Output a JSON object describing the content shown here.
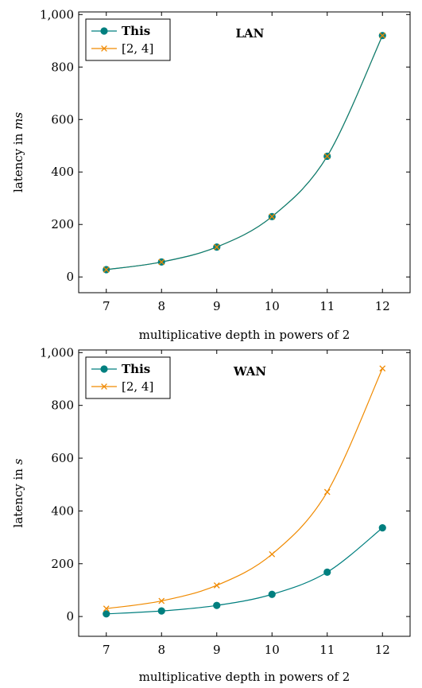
{
  "chart_data": [
    {
      "type": "line",
      "title": "LAN",
      "xlabel": "multiplicative depth in powers of 2",
      "ylabel_parts": [
        "latency in ",
        "ms"
      ],
      "x": [
        7,
        8,
        9,
        10,
        11,
        12
      ],
      "xlim": [
        6.5,
        12.5
      ],
      "ylim": [
        -60,
        1010
      ],
      "yticks": [
        0,
        200,
        400,
        600,
        800,
        1000
      ],
      "ytick_labels": [
        "0",
        "200",
        "400",
        "600",
        "800",
        "1,000"
      ],
      "xticks": [
        7,
        8,
        9,
        10,
        11,
        12
      ],
      "xtick_labels": [
        "7",
        "8",
        "9",
        "10",
        "11",
        "12"
      ],
      "legend_position": "top-left",
      "series": [
        {
          "name": "This",
          "values": [
            28,
            57,
            114,
            230,
            460,
            920
          ],
          "color": "#007f7f",
          "marker": "circle",
          "bold": true
        },
        {
          "name": "[2, 4]",
          "values": [
            28,
            57,
            114,
            230,
            460,
            920
          ],
          "color": "#f08a00",
          "marker": "x",
          "bold": false
        }
      ]
    },
    {
      "type": "line",
      "title": "WAN",
      "xlabel": "multiplicative depth in powers of 2",
      "ylabel_parts": [
        "latency in ",
        "s"
      ],
      "x": [
        7,
        8,
        9,
        10,
        11,
        12
      ],
      "xlim": [
        6.5,
        12.5
      ],
      "ylim": [
        -75,
        1010
      ],
      "yticks": [
        0,
        200,
        400,
        600,
        800,
        1000
      ],
      "ytick_labels": [
        "0",
        "200",
        "400",
        "600",
        "800",
        "1,000"
      ],
      "xticks": [
        7,
        8,
        9,
        10,
        11,
        12
      ],
      "xtick_labels": [
        "7",
        "8",
        "9",
        "10",
        "11",
        "12"
      ],
      "legend_position": "top-left",
      "series": [
        {
          "name": "This",
          "values": [
            10,
            21,
            42,
            84,
            168,
            336
          ],
          "color": "#007f7f",
          "marker": "circle",
          "bold": true
        },
        {
          "name": "[2, 4]",
          "values": [
            30,
            59,
            118,
            236,
            472,
            940
          ],
          "color": "#f08a00",
          "marker": "x",
          "bold": false
        }
      ]
    }
  ]
}
